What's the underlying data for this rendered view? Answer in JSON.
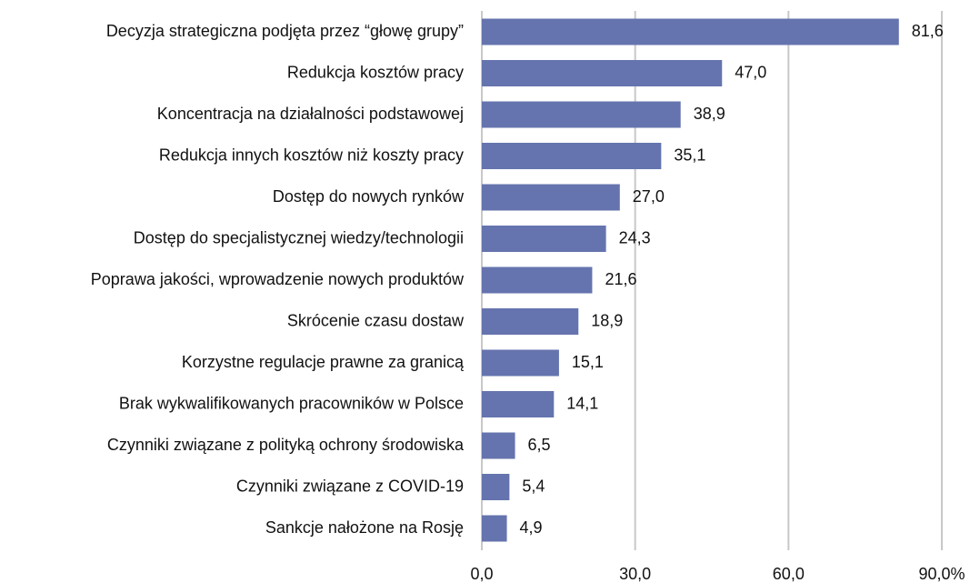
{
  "chart_data": {
    "type": "hbar",
    "categories": [
      "Decyzja strategiczna podjęta przez “głowę grupy”",
      "Redukcja kosztów pracy",
      "Koncentracja na działalności podstawowej",
      "Redukcja innych kosztów niż koszty pracy",
      "Dostęp do nowych rynków",
      "Dostęp do specjalistycznej wiedzy/technologii",
      "Poprawa jakości, wprowadzenie nowych produktów",
      "Skrócenie czasu dostaw",
      "Korzystne regulacje prawne za granicą",
      "Brak wykwalifikowanych pracowników w Polsce",
      "Czynniki związane z polityką ochrony środowiska",
      "Czynniki związane z COVID-19",
      "Sankcje nałożone na Rosję"
    ],
    "values": [
      81.6,
      47.0,
      38.9,
      35.1,
      27.0,
      24.3,
      21.6,
      18.9,
      15.1,
      14.1,
      6.5,
      5.4,
      4.9
    ],
    "value_labels": [
      "81,6",
      "47,0",
      "38,9",
      "35,1",
      "27,0",
      "24,3",
      "21,6",
      "18,9",
      "15,1",
      "14,1",
      "6,5",
      "5,4",
      "4,9"
    ],
    "color": "#6574ae",
    "xlim": [
      0,
      90
    ],
    "xticks": [
      {
        "value": 0,
        "label": "0,0"
      },
      {
        "value": 30,
        "label": "30,0"
      },
      {
        "value": 60,
        "label": "60,0"
      },
      {
        "value": 90,
        "label": "90,0%"
      }
    ],
    "grid": true
  }
}
